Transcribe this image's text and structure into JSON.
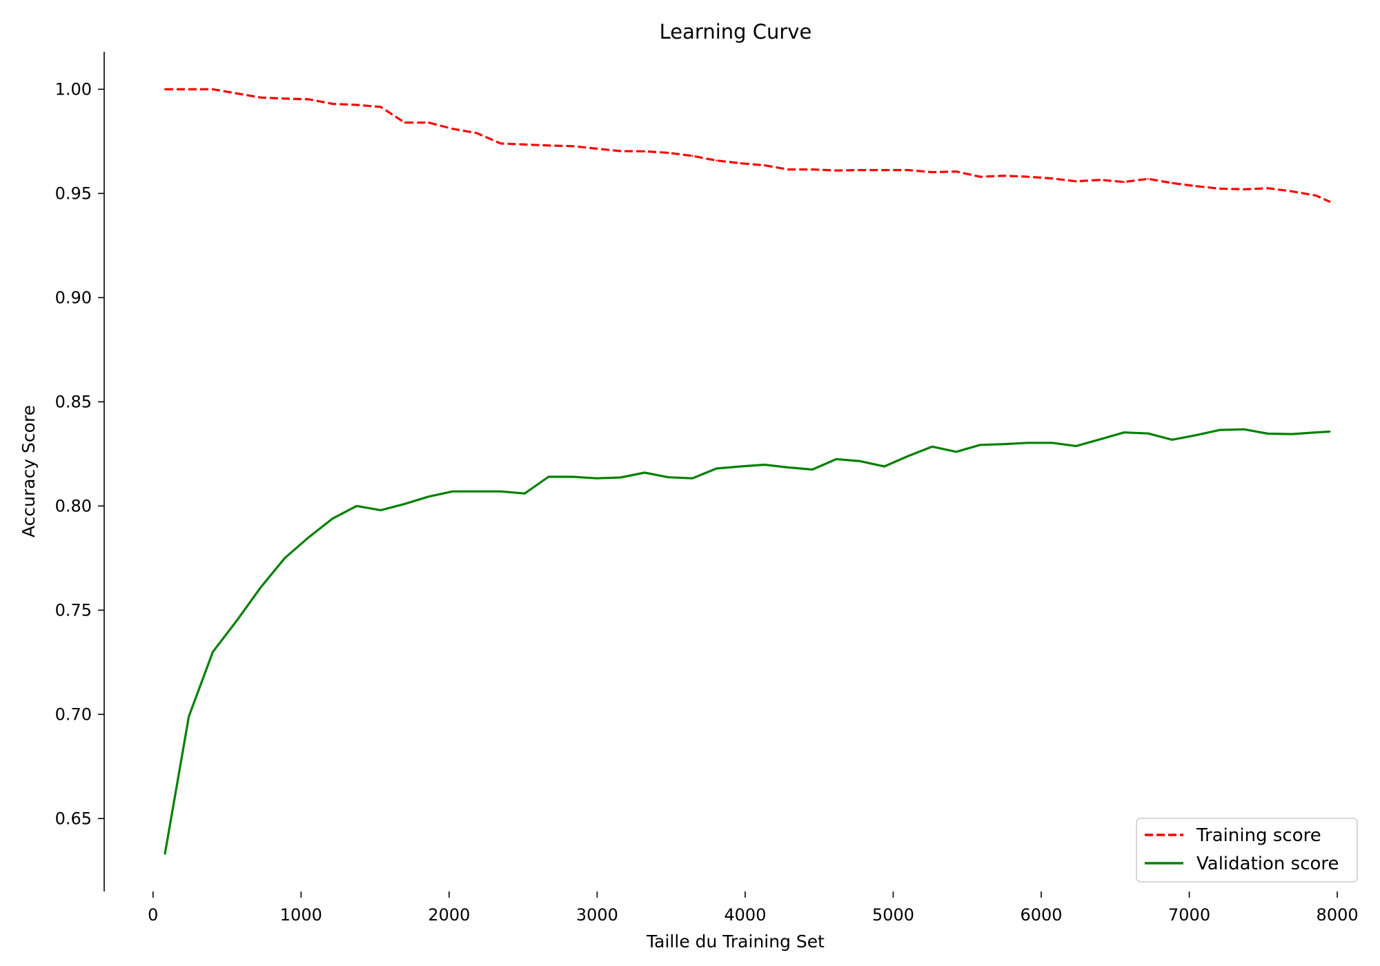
{
  "chart_data": {
    "type": "line",
    "title": "Learning Curve",
    "xlabel": "Taille du Training Set",
    "ylabel": "Accuracy Score",
    "xlim": [
      -330,
      8200
    ],
    "ylim": [
      0.615,
      1.018
    ],
    "xticks": [
      0,
      1000,
      2000,
      3000,
      4000,
      5000,
      6000,
      7000,
      8000
    ],
    "xtick_labels": [
      "0",
      "1000",
      "2000",
      "3000",
      "4000",
      "5000",
      "6000",
      "7000",
      "8000"
    ],
    "yticks": [
      0.65,
      0.7,
      0.75,
      0.8,
      0.85,
      0.9,
      0.95,
      1.0
    ],
    "ytick_labels": [
      "0.65",
      "0.70",
      "0.75",
      "0.80",
      "0.85",
      "0.90",
      "0.95",
      "1.00"
    ],
    "grid": false,
    "legend_position": "bottom-right",
    "x": [
      80,
      242,
      404,
      566,
      728,
      890,
      1052,
      1214,
      1376,
      1538,
      1700,
      1862,
      2024,
      2186,
      2348,
      2510,
      2672,
      2834,
      2996,
      3158,
      3320,
      3482,
      3644,
      3806,
      3968,
      4130,
      4292,
      4454,
      4616,
      4778,
      4940,
      5102,
      5264,
      5426,
      5588,
      5750,
      5912,
      6074,
      6236,
      6398,
      6560,
      6722,
      6884,
      7046,
      7208,
      7370,
      7532,
      7694,
      7856,
      7950
    ],
    "series": [
      {
        "name": "Training score",
        "color": "#ff0000",
        "style": "dashed",
        "values": [
          1.0,
          1.0,
          1.0,
          0.998,
          0.996,
          0.9955,
          0.9952,
          0.993,
          0.9925,
          0.9915,
          0.984,
          0.984,
          0.981,
          0.979,
          0.974,
          0.9735,
          0.973,
          0.9727,
          0.9715,
          0.9703,
          0.9702,
          0.9695,
          0.968,
          0.9658,
          0.9645,
          0.9635,
          0.9615,
          0.9615,
          0.961,
          0.9612,
          0.9612,
          0.9612,
          0.9602,
          0.9605,
          0.958,
          0.9585,
          0.958,
          0.9572,
          0.9558,
          0.9565,
          0.9555,
          0.957,
          0.955,
          0.9535,
          0.9523,
          0.952,
          0.9525,
          0.951,
          0.949,
          0.946
        ]
      },
      {
        "name": "Validation score",
        "color": "#008000",
        "style": "solid",
        "values": [
          0.633,
          0.699,
          0.73,
          0.745,
          0.761,
          0.775,
          0.785,
          0.794,
          0.8,
          0.798,
          0.801,
          0.8045,
          0.807,
          0.807,
          0.807,
          0.806,
          0.814,
          0.814,
          0.8133,
          0.8137,
          0.816,
          0.8138,
          0.8133,
          0.818,
          0.819,
          0.8198,
          0.8185,
          0.8175,
          0.8225,
          0.8215,
          0.819,
          0.824,
          0.8285,
          0.826,
          0.8293,
          0.8297,
          0.8303,
          0.8303,
          0.8288,
          0.832,
          0.8353,
          0.8348,
          0.8318,
          0.834,
          0.8365,
          0.8368,
          0.8347,
          0.8345,
          0.8353,
          0.8357
        ]
      }
    ]
  }
}
